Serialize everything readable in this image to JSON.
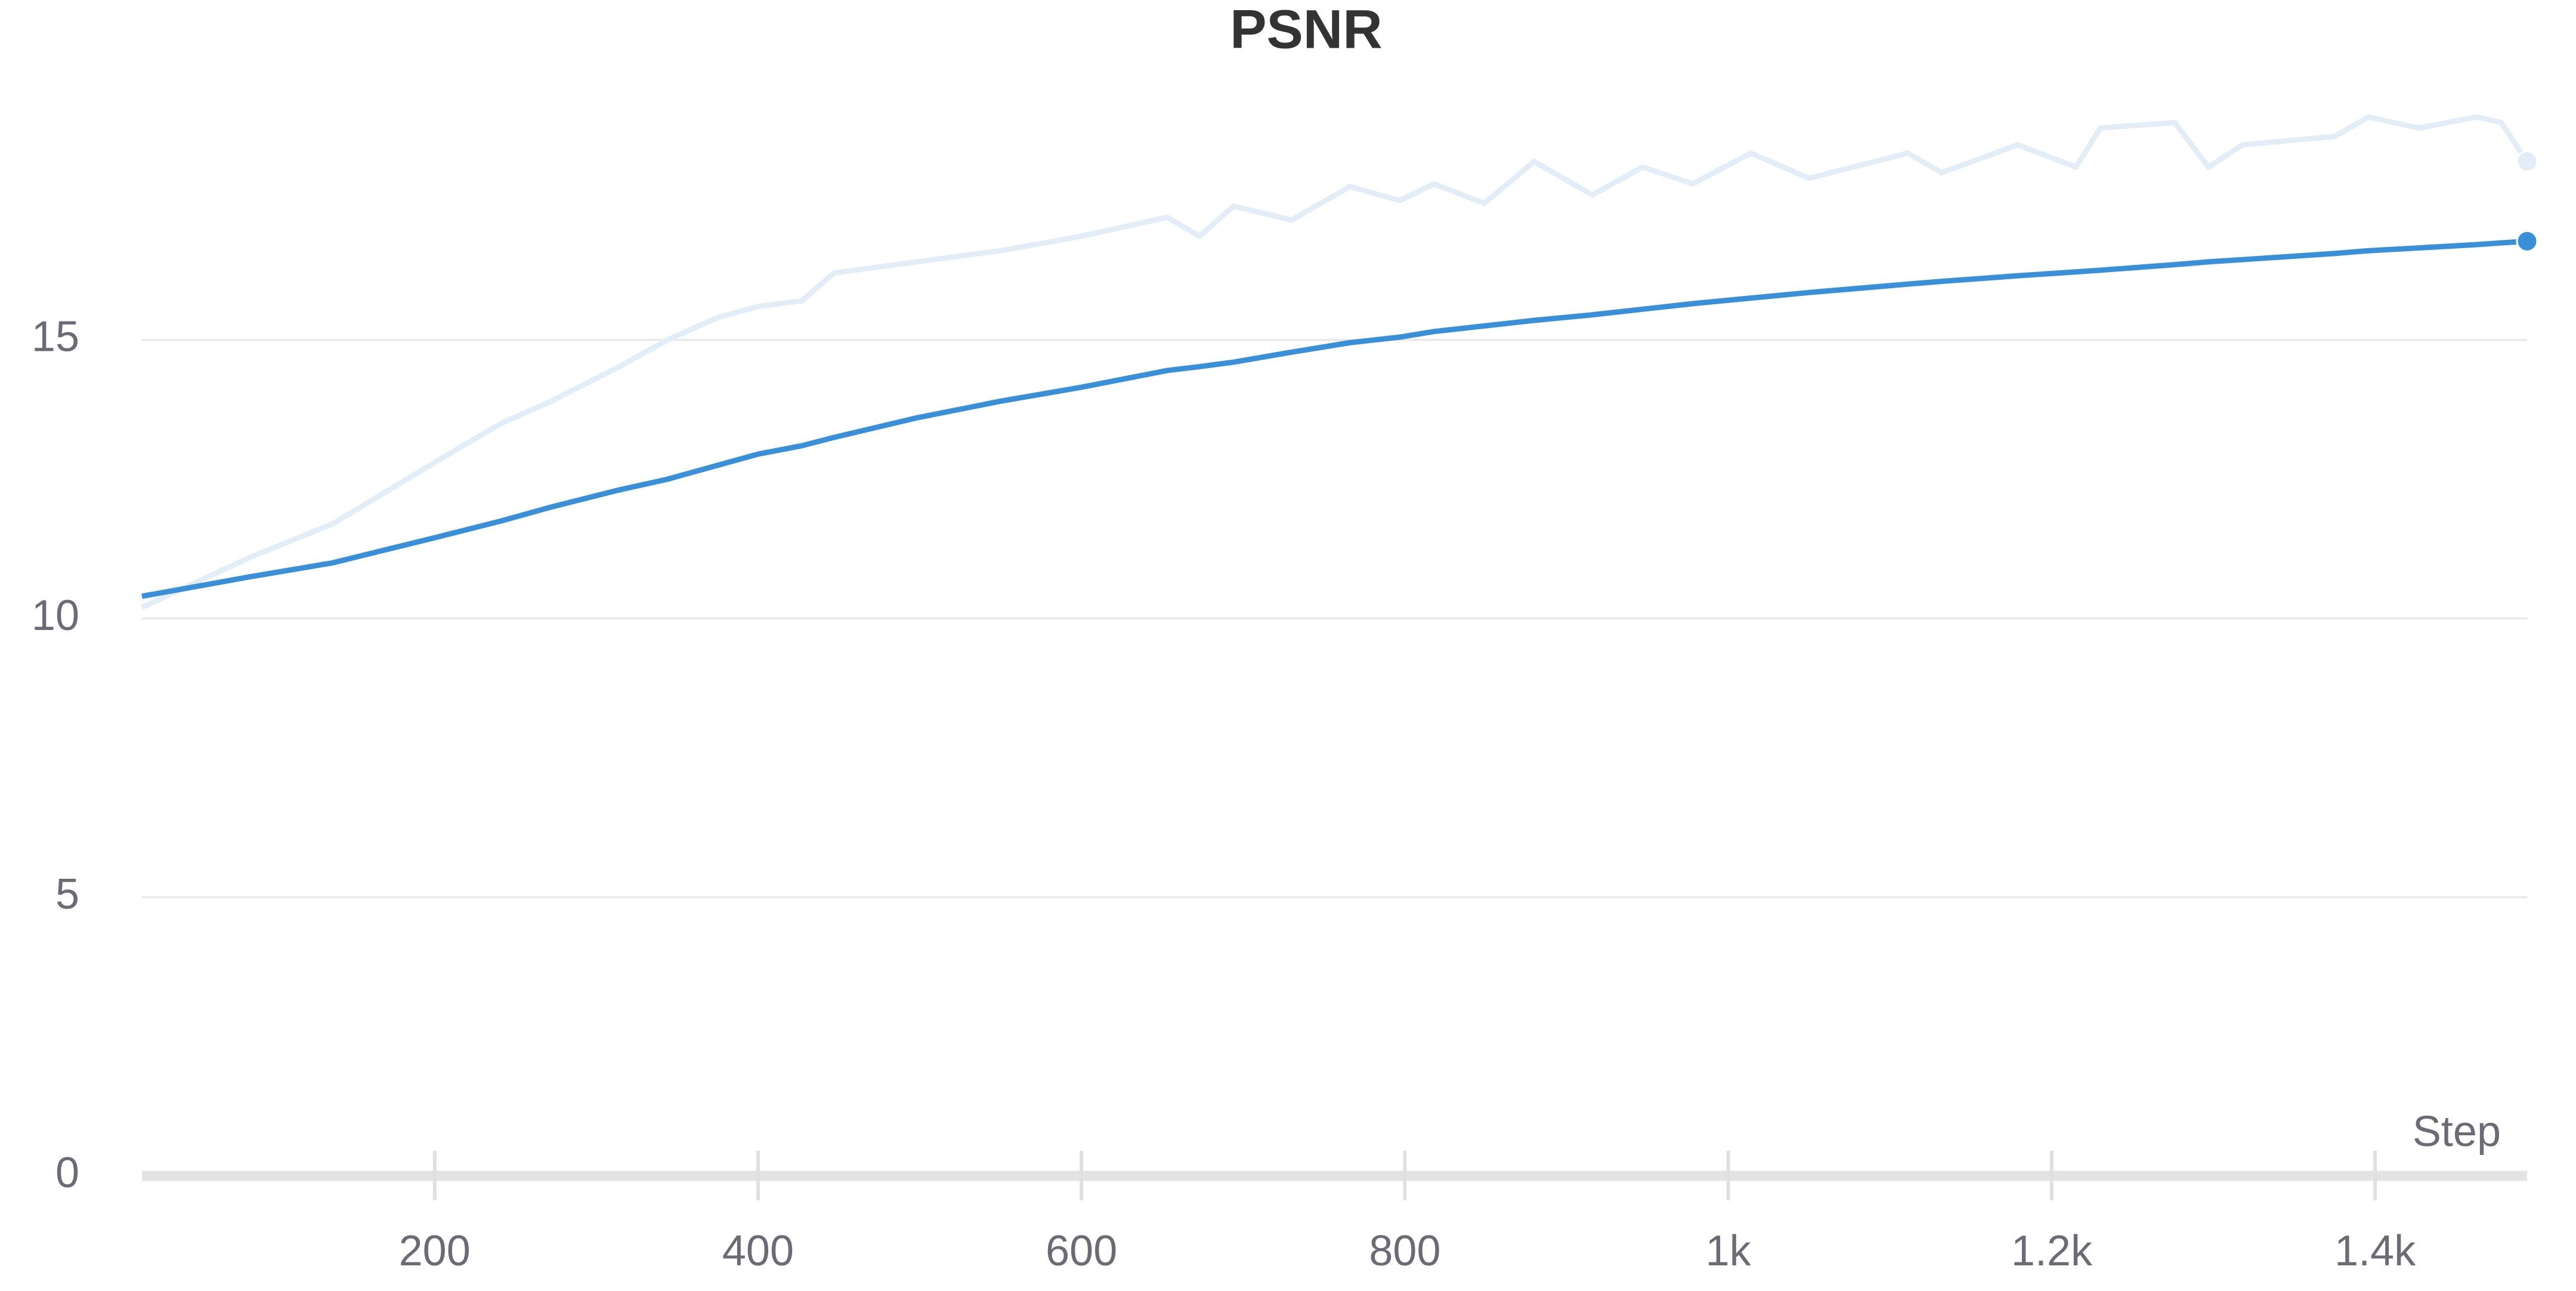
{
  "chart_data": {
    "type": "line",
    "title": "PSNR",
    "x_label": "Step",
    "x": [
      19,
      86,
      137,
      200,
      241,
      272,
      313,
      344,
      375,
      400,
      427,
      447,
      498,
      550,
      600,
      653,
      673,
      694,
      730,
      766,
      797,
      818,
      849,
      880,
      916,
      947,
      978,
      1014,
      1050,
      1111,
      1132,
      1179,
      1215,
      1230,
      1276,
      1297,
      1318,
      1375,
      1396,
      1427,
      1463,
      1478,
      1494
    ],
    "series": [
      {
        "color": "#e2edf8",
        "values": [
          10.2,
          11.1,
          11.7,
          12.8,
          13.5,
          13.9,
          14.5,
          15.0,
          15.4,
          15.6,
          15.7,
          16.2,
          16.4,
          16.6,
          16.86,
          17.2,
          16.86,
          17.4,
          17.15,
          17.75,
          17.5,
          17.8,
          17.45,
          18.2,
          17.6,
          18.1,
          17.8,
          18.35,
          17.9,
          18.35,
          18.0,
          18.5,
          18.1,
          18.8,
          18.9,
          18.1,
          18.5,
          18.65,
          19.0,
          18.8,
          19.0,
          18.9,
          18.2
        ]
      },
      {
        "color": "#3a8fd9",
        "values": [
          10.4,
          10.75,
          11.0,
          11.45,
          11.75,
          12.0,
          12.3,
          12.5,
          12.75,
          12.95,
          13.1,
          13.25,
          13.6,
          13.9,
          14.15,
          14.45,
          14.52,
          14.6,
          14.78,
          14.95,
          15.05,
          15.15,
          15.25,
          15.35,
          15.45,
          15.55,
          15.65,
          15.75,
          15.85,
          16.0,
          16.05,
          16.15,
          16.22,
          16.25,
          16.35,
          16.4,
          16.44,
          16.55,
          16.6,
          16.65,
          16.71,
          16.74,
          16.77
        ]
      }
    ],
    "xlim": [
      19,
      1494
    ],
    "ylim": [
      0,
      19.3
    ],
    "xticks": [
      200,
      400,
      600,
      800,
      {
        "value": 1000,
        "label": "1k"
      },
      {
        "value": 1200,
        "label": "1.2k"
      },
      {
        "value": 1400,
        "label": "1.4k"
      }
    ],
    "yticks": [
      0,
      5,
      10,
      15
    ],
    "grid": true
  }
}
